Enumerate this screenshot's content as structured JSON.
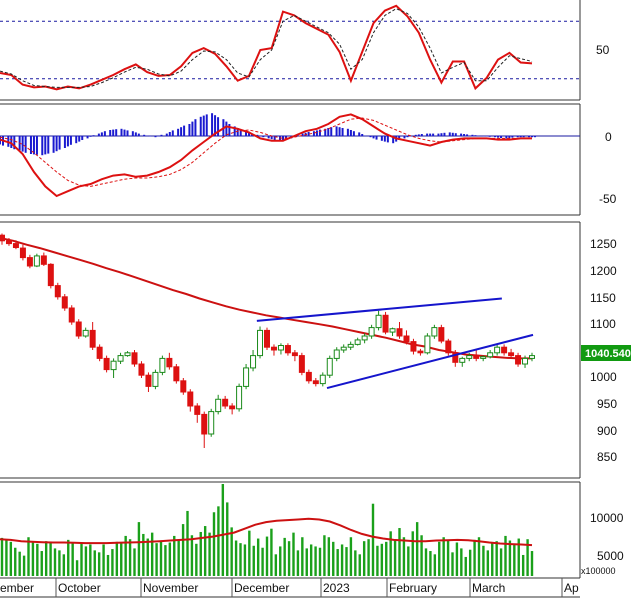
{
  "chart_data": [
    {
      "type": "line",
      "panel": "oscillator",
      "yticks": [
        50
      ],
      "ylim": [
        0,
        100
      ],
      "reference_levels": [
        80,
        20
      ],
      "series": [
        {
          "color": "#dd1111",
          "values": [
            26,
            24,
            14,
            11,
            12,
            9,
            12,
            10,
            14,
            19,
            24,
            30,
            35,
            27,
            23,
            24,
            33,
            47,
            52,
            46,
            33,
            18,
            23,
            50,
            52,
            90,
            86,
            78,
            72,
            66,
            48,
            18,
            48,
            78,
            91,
            96,
            85,
            68,
            40,
            16,
            38,
            38,
            10,
            21,
            40,
            47,
            37,
            36
          ]
        },
        {
          "color": "#222222",
          "values": [
            28,
            25,
            18,
            13,
            12,
            11,
            11,
            11,
            12,
            16,
            21,
            27,
            32,
            30,
            25,
            23,
            28,
            40,
            49,
            48,
            40,
            26,
            22,
            40,
            50,
            80,
            86,
            80,
            74,
            68,
            56,
            30,
            40,
            68,
            86,
            93,
            88,
            74,
            52,
            26,
            32,
            37,
            18,
            18,
            32,
            44,
            41,
            38
          ]
        }
      ]
    },
    {
      "type": "bar",
      "panel": "macd",
      "yticks": [
        0,
        -50
      ],
      "ylim": [
        -65,
        25
      ],
      "series": [
        {
          "name": "",
          "color": "#1a1ad0",
          "kind": "histogram",
          "values": [
            -6,
            -9,
            -12,
            -15,
            -16,
            -14,
            -10,
            -6,
            -2,
            2,
            5,
            6,
            4,
            1,
            -1,
            2,
            6,
            10,
            16,
            19,
            14,
            8,
            4,
            1,
            -2,
            -4,
            -2,
            2,
            4,
            6,
            8,
            6,
            3,
            -1,
            -4,
            -6,
            -2,
            1,
            2,
            2,
            3,
            2,
            1,
            0,
            -1,
            -2,
            -1,
            -1
          ]
        },
        {
          "name": "",
          "color": "#dd1111",
          "kind": "line",
          "values": [
            -3,
            -6,
            -15,
            -30,
            -42,
            -50,
            -46,
            -42,
            -40,
            -36,
            -33,
            -32,
            -34,
            -33,
            -30,
            -26,
            -20,
            -12,
            -5,
            2,
            8,
            6,
            3,
            -2,
            -4,
            -4,
            0,
            4,
            6,
            10,
            16,
            18,
            14,
            8,
            2,
            -2,
            -4,
            -6,
            -8,
            -5,
            -3,
            -2,
            -2,
            -2,
            -3,
            -3,
            -2,
            -2
          ]
        },
        {
          "name": "",
          "color": "#dd1111",
          "kind": "dashed",
          "values": [
            -1,
            -3,
            -7,
            -14,
            -22,
            -30,
            -37,
            -41,
            -42,
            -40,
            -38,
            -36,
            -35,
            -35,
            -34,
            -32,
            -28,
            -22,
            -14,
            -6,
            1,
            4,
            5,
            3,
            0,
            -2,
            -1,
            1,
            3,
            6,
            10,
            14,
            15,
            13,
            9,
            5,
            1,
            -2,
            -4,
            -5,
            -4,
            -3,
            -2,
            -2,
            -2,
            -2,
            -2,
            -2
          ]
        }
      ]
    },
    {
      "type": "candlestick",
      "panel": "price",
      "yticks": [
        1250,
        1200,
        1150,
        1100,
        1050,
        1000,
        950,
        900,
        850
      ],
      "ylim": [
        825,
        1275
      ],
      "last_price_label": "1040.540",
      "last_price": 1040.54,
      "up_color": "#1a8a1a",
      "down_color": "#dd1111",
      "moving_average": {
        "color": "#cc1111",
        "values": [
          1250,
          1245,
          1238,
          1232,
          1225,
          1218,
          1211,
          1204,
          1196,
          1189,
          1181,
          1173,
          1165,
          1157,
          1150,
          1142,
          1135,
          1128,
          1122,
          1117,
          1112,
          1108,
          1104,
          1100,
          1096,
          1092,
          1087,
          1082,
          1077,
          1072,
          1066,
          1060,
          1056,
          1050,
          1046,
          1042,
          1040,
          1038,
          1036,
          1035,
          1035
        ]
      },
      "trendlines": [
        {
          "color": "#1515cc",
          "from": [
            25,
            1102
          ],
          "to": [
            59,
            1142
          ]
        },
        {
          "color": "#1515cc",
          "from": [
            34,
            982
          ],
          "to": [
            63,
            1077
          ]
        }
      ],
      "candles": [
        [
          1255,
          1258,
          1238,
          1245
        ],
        [
          1245,
          1250,
          1236,
          1240
        ],
        [
          1240,
          1246,
          1230,
          1233
        ],
        [
          1232,
          1238,
          1210,
          1215
        ],
        [
          1215,
          1220,
          1196,
          1200
        ],
        [
          1200,
          1222,
          1198,
          1218
        ],
        [
          1218,
          1224,
          1200,
          1203
        ],
        [
          1203,
          1205,
          1160,
          1165
        ],
        [
          1165,
          1170,
          1140,
          1145
        ],
        [
          1145,
          1150,
          1120,
          1125
        ],
        [
          1125,
          1130,
          1095,
          1100
        ],
        [
          1100,
          1105,
          1070,
          1075
        ],
        [
          1075,
          1090,
          1072,
          1085
        ],
        [
          1085,
          1100,
          1050,
          1055
        ],
        [
          1055,
          1060,
          1030,
          1035
        ],
        [
          1035,
          1040,
          1010,
          1015
        ],
        [
          1015,
          1035,
          1000,
          1030
        ],
        [
          1030,
          1045,
          1025,
          1040
        ],
        [
          1040,
          1048,
          1038,
          1045
        ],
        [
          1045,
          1050,
          1020,
          1025
        ],
        [
          1025,
          1030,
          1000,
          1005
        ],
        [
          1005,
          1010,
          975,
          985
        ],
        [
          985,
          1015,
          980,
          1010
        ],
        [
          1010,
          1040,
          1005,
          1035
        ],
        [
          1035,
          1045,
          1015,
          1020
        ],
        [
          1020,
          1025,
          990,
          995
        ],
        [
          995,
          1000,
          970,
          975
        ],
        [
          975,
          980,
          940,
          950
        ],
        [
          950,
          955,
          920,
          935
        ],
        [
          935,
          940,
          875,
          900
        ],
        [
          900,
          945,
          895,
          940
        ],
        [
          940,
          970,
          935,
          962
        ],
        [
          962,
          968,
          945,
          950
        ],
        [
          950,
          955,
          935,
          945
        ],
        [
          945,
          990,
          940,
          985
        ],
        [
          985,
          1025,
          980,
          1018
        ],
        [
          1018,
          1050,
          1012,
          1040
        ],
        [
          1040,
          1092,
          1035,
          1085
        ],
        [
          1085,
          1090,
          1050,
          1055
        ],
        [
          1055,
          1060,
          1040,
          1050
        ],
        [
          1050,
          1062,
          1042,
          1058
        ],
        [
          1058,
          1062,
          1040,
          1045
        ],
        [
          1045,
          1050,
          1030,
          1040
        ],
        [
          1040,
          1045,
          1005,
          1010
        ],
        [
          1010,
          1015,
          990,
          995
        ],
        [
          995,
          1000,
          985,
          990
        ],
        [
          990,
          1010,
          985,
          1005
        ],
        [
          1005,
          1040,
          1000,
          1035
        ],
        [
          1035,
          1055,
          1030,
          1050
        ],
        [
          1050,
          1060,
          1045,
          1055
        ],
        [
          1055,
          1065,
          1050,
          1060
        ],
        [
          1060,
          1072,
          1058,
          1068
        ],
        [
          1068,
          1080,
          1062,
          1075
        ],
        [
          1075,
          1095,
          1070,
          1090
        ],
        [
          1090,
          1120,
          1085,
          1112
        ],
        [
          1112,
          1118,
          1078,
          1082
        ],
        [
          1082,
          1090,
          1075,
          1088
        ],
        [
          1088,
          1100,
          1070,
          1075
        ],
        [
          1075,
          1085,
          1060,
          1065
        ],
        [
          1065,
          1070,
          1042,
          1048
        ],
        [
          1048,
          1052,
          1040,
          1045
        ],
        [
          1045,
          1080,
          1042,
          1075
        ],
        [
          1075,
          1095,
          1070,
          1090
        ],
        [
          1090,
          1095,
          1062,
          1066
        ],
        [
          1066,
          1070,
          1040,
          1045
        ],
        [
          1045,
          1050,
          1020,
          1028
        ],
        [
          1028,
          1038,
          1020,
          1035
        ],
        [
          1035,
          1045,
          1030,
          1040
        ],
        [
          1040,
          1050,
          1030,
          1035
        ],
        [
          1035,
          1040,
          1030,
          1038
        ],
        [
          1038,
          1050,
          1035,
          1045
        ],
        [
          1045,
          1060,
          1040,
          1055
        ],
        [
          1055,
          1060,
          1040,
          1045
        ],
        [
          1045,
          1052,
          1035,
          1040
        ],
        [
          1040,
          1045,
          1020,
          1025
        ],
        [
          1025,
          1040,
          1018,
          1035
        ],
        [
          1035,
          1045,
          1030,
          1040
        ]
      ]
    },
    {
      "type": "bar",
      "panel": "volume",
      "yticks": [
        10000,
        5000
      ],
      "ylim": [
        0,
        14000
      ],
      "unit_label": "x100000",
      "color": "#1aa01a",
      "moving_average": {
        "color": "#cc1111",
        "values": [
          5600,
          5500,
          5300,
          5200,
          5150,
          5100,
          5100,
          5050,
          5000,
          5000,
          5000,
          5050,
          5100,
          5150,
          5200,
          5300,
          5400,
          5500,
          5600,
          5800,
          6000,
          6300,
          6600,
          7200,
          7800,
          8200,
          8400,
          8500,
          8600,
          8700,
          8600,
          8300,
          7700,
          7000,
          6400,
          6000,
          5700,
          5500,
          5400,
          5300,
          5300,
          5400,
          5450,
          5500,
          5450,
          5300,
          5100,
          4950,
          4850,
          4800,
          4700
        ]
      },
      "values": [
        5800,
        5600,
        5200,
        4300,
        3700,
        3100,
        5900,
        5300,
        4900,
        3800,
        5300,
        5100,
        4200,
        3900,
        3300,
        5500,
        5000,
        2400,
        5100,
        4500,
        4800,
        3900,
        3600,
        4800,
        3200,
        4100,
        5200,
        5000,
        6100,
        5600,
        4200,
        8200,
        6400,
        5700,
        6600,
        5000,
        5200,
        4700,
        5100,
        6100,
        5400,
        7900,
        9900,
        6200,
        4900,
        6700,
        7600,
        6600,
        9700,
        10600,
        14000,
        11200,
        7400,
        5400,
        5000,
        4800,
        6900,
        4600,
        5700,
        4300,
        6000,
        7200,
        3300,
        4500,
        5800,
        5300,
        6600,
        3900,
        5900,
        4200,
        4800,
        4500,
        4300,
        6200,
        5900,
        5200,
        4100,
        4800,
        4400,
        5900,
        3900,
        3300,
        5300,
        5600,
        11000,
        4600,
        4900,
        5200,
        6800,
        5600,
        7300,
        5900,
        4500,
        6800,
        8200,
        6200,
        4200,
        3800,
        3300,
        5200,
        5900,
        5500,
        3600,
        5100,
        4200,
        2900,
        4000,
        5500,
        5900,
        4600,
        3900,
        5100,
        5300,
        4200,
        6100,
        5400,
        4800,
        5700,
        3200,
        5600,
        3800
      ]
    }
  ],
  "x_axis": {
    "labels": [
      "ember",
      "October",
      "November",
      "December",
      "2023",
      "February",
      "March",
      "Ap"
    ]
  }
}
